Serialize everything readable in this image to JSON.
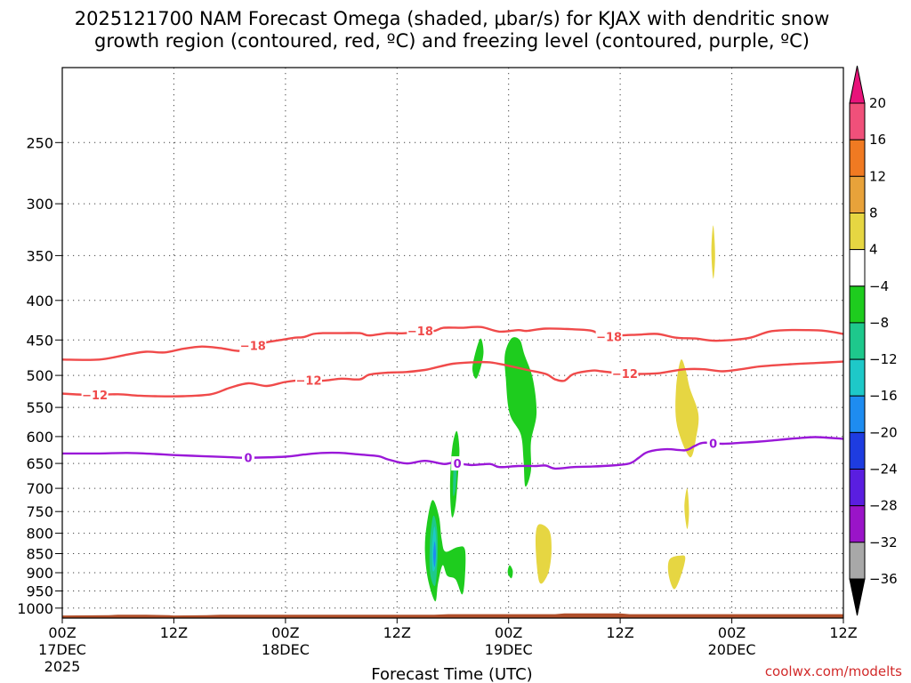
{
  "chart_data": {
    "type": "contour",
    "title_line1": "2025121700 NAM Forecast Omega (shaded, μbar/s) for KJAX with dendritic snow",
    "title_line2": "growth region (contoured, red, ºC) and freezing level (contoured, purple, ºC)",
    "xlabel": "Forecast Time (UTC)",
    "ylabel": "",
    "credit": "coolwx.com/modelts",
    "x_range_hours": [
      0,
      84
    ],
    "y_range_hPa": [
      1030,
      200
    ],
    "x_ticks": [
      {
        "hour": 0,
        "label": "00Z",
        "sub": "17DEC",
        "sub2": "2025"
      },
      {
        "hour": 12,
        "label": "12Z",
        "sub": "",
        "sub2": ""
      },
      {
        "hour": 24,
        "label": "00Z",
        "sub": "18DEC",
        "sub2": ""
      },
      {
        "hour": 36,
        "label": "12Z",
        "sub": "",
        "sub2": ""
      },
      {
        "hour": 48,
        "label": "00Z",
        "sub": "19DEC",
        "sub2": ""
      },
      {
        "hour": 60,
        "label": "12Z",
        "sub": "",
        "sub2": ""
      },
      {
        "hour": 72,
        "label": "00Z",
        "sub": "20DEC",
        "sub2": ""
      },
      {
        "hour": 84,
        "label": "12Z",
        "sub": "",
        "sub2": ""
      }
    ],
    "y_ticks": [
      {
        "p": 250,
        "label": "250"
      },
      {
        "p": 300,
        "label": "300"
      },
      {
        "p": 350,
        "label": "350"
      },
      {
        "p": 400,
        "label": "400"
      },
      {
        "p": 450,
        "label": "450"
      },
      {
        "p": 500,
        "label": "500"
      },
      {
        "p": 550,
        "label": "550"
      },
      {
        "p": 600,
        "label": "600"
      },
      {
        "p": 650,
        "label": "650"
      },
      {
        "p": 700,
        "label": "700"
      },
      {
        "p": 750,
        "label": "750"
      },
      {
        "p": 800,
        "label": "800"
      },
      {
        "p": 850,
        "label": "850"
      },
      {
        "p": 900,
        "label": "900"
      },
      {
        "p": 950,
        "label": "950"
      },
      {
        "p": 1000,
        "label": "1000"
      }
    ],
    "colorbar": {
      "levels": [
        {
          "label": "20",
          "color": "#ee4a5c"
        },
        {
          "label": "16",
          "color": "#f07a22"
        },
        {
          "label": "12",
          "color": "#e8a23a"
        },
        {
          "label": "8",
          "color": "#e6d642"
        },
        {
          "label": "4",
          "color": "#ffffff"
        },
        {
          "label": "−4",
          "color": "#1ecc1e"
        },
        {
          "label": "−8",
          "color": "#1ec88c"
        },
        {
          "label": "−12",
          "color": "#1ec8c8"
        },
        {
          "label": "−16",
          "color": "#1e8cf0"
        },
        {
          "label": "−20",
          "color": "#1e3ce0"
        },
        {
          "label": "−24",
          "color": "#5a1ee0"
        },
        {
          "label": "−28",
          "color": "#9a14c8"
        },
        {
          "label": "−32",
          "color": "#a8a8a8"
        },
        {
          "label": "−36",
          "color": ""
        }
      ],
      "top_arrow_color": "#e8137a",
      "bottom_arrow_color": "#000000",
      "first_band_color": "#f0507a"
    },
    "contours": [
      {
        "name": "minus-18-isotherm",
        "label": "−18",
        "color": "#f04a4a",
        "label_hours": [
          20.5,
          38.5,
          58.8
        ],
        "points": [
          [
            0,
            477
          ],
          [
            4,
            477
          ],
          [
            7,
            470
          ],
          [
            9,
            466
          ],
          [
            11,
            467
          ],
          [
            13,
            462
          ],
          [
            15,
            459
          ],
          [
            17,
            461
          ],
          [
            19,
            465
          ],
          [
            20,
            459
          ],
          [
            22,
            453
          ],
          [
            24,
            449
          ],
          [
            25,
            447
          ],
          [
            26,
            446
          ],
          [
            27,
            442
          ],
          [
            28,
            441
          ],
          [
            30,
            441
          ],
          [
            32,
            441
          ],
          [
            33,
            444
          ],
          [
            35,
            441
          ],
          [
            37,
            441
          ],
          [
            39,
            437
          ],
          [
            40,
            438
          ],
          [
            41,
            434
          ],
          [
            43,
            434
          ],
          [
            45,
            433
          ],
          [
            47,
            439
          ],
          [
            49,
            437
          ],
          [
            50,
            438
          ],
          [
            52,
            435
          ],
          [
            55,
            436
          ],
          [
            57,
            438
          ],
          [
            58,
            445
          ],
          [
            59,
            446
          ],
          [
            60,
            444
          ],
          [
            62,
            443
          ],
          [
            64,
            442
          ],
          [
            66,
            447
          ],
          [
            68,
            448
          ],
          [
            70,
            451
          ],
          [
            72,
            450
          ],
          [
            74,
            447
          ],
          [
            76,
            439
          ],
          [
            78,
            437
          ],
          [
            80,
            437
          ],
          [
            82,
            438
          ],
          [
            84,
            442
          ]
        ]
      },
      {
        "name": "minus-12-isotherm",
        "label": "−12",
        "color": "#f04a4a",
        "label_hours": [
          3.5,
          26.5,
          60.5
        ],
        "points": [
          [
            0,
            528
          ],
          [
            3,
            530
          ],
          [
            6,
            529
          ],
          [
            8,
            531
          ],
          [
            10,
            532
          ],
          [
            13,
            532
          ],
          [
            16,
            529
          ],
          [
            18,
            519
          ],
          [
            20,
            512
          ],
          [
            22,
            516
          ],
          [
            24,
            510
          ],
          [
            26,
            507
          ],
          [
            28,
            508
          ],
          [
            30,
            505
          ],
          [
            32,
            506
          ],
          [
            33,
            499
          ],
          [
            35,
            496
          ],
          [
            37,
            495
          ],
          [
            39,
            492
          ],
          [
            40,
            489
          ],
          [
            42,
            483
          ],
          [
            44,
            481
          ],
          [
            46,
            481
          ],
          [
            48,
            486
          ],
          [
            50,
            492
          ],
          [
            52,
            498
          ],
          [
            53,
            506
          ],
          [
            54,
            508
          ],
          [
            55,
            498
          ],
          [
            57,
            493
          ],
          [
            58,
            494
          ],
          [
            60,
            497
          ],
          [
            62,
            498
          ],
          [
            64,
            497
          ],
          [
            65,
            495
          ],
          [
            67,
            491
          ],
          [
            69,
            491
          ],
          [
            71,
            494
          ],
          [
            73,
            491
          ],
          [
            75,
            487
          ],
          [
            78,
            484
          ],
          [
            81,
            482
          ],
          [
            84,
            480
          ]
        ]
      },
      {
        "name": "freezing-level-0c",
        "label": "0",
        "color": "#9a18d8",
        "label_hours": [
          20,
          42.5,
          70
        ],
        "points": [
          [
            0,
            631
          ],
          [
            4,
            631
          ],
          [
            7,
            630
          ],
          [
            10,
            632
          ],
          [
            12,
            634
          ],
          [
            15,
            636
          ],
          [
            18,
            638
          ],
          [
            20,
            639
          ],
          [
            24,
            637
          ],
          [
            26,
            633
          ],
          [
            28,
            630
          ],
          [
            30,
            630
          ],
          [
            32,
            633
          ],
          [
            34,
            636
          ],
          [
            35,
            642
          ],
          [
            37,
            650
          ],
          [
            39,
            645
          ],
          [
            41,
            651
          ],
          [
            42,
            649
          ],
          [
            44,
            653
          ],
          [
            46,
            651
          ],
          [
            47,
            657
          ],
          [
            49,
            655
          ],
          [
            51,
            655
          ],
          [
            52,
            654
          ],
          [
            53,
            660
          ],
          [
            55,
            657
          ],
          [
            57,
            656
          ],
          [
            59,
            654
          ],
          [
            61,
            650
          ],
          [
            62,
            639
          ],
          [
            63,
            628
          ],
          [
            65,
            623
          ],
          [
            67,
            625
          ],
          [
            68,
            617
          ],
          [
            69,
            611
          ],
          [
            71,
            613
          ],
          [
            73,
            611
          ],
          [
            75,
            609
          ],
          [
            77,
            606
          ],
          [
            79,
            603
          ],
          [
            81,
            601
          ],
          [
            84,
            604
          ]
        ]
      }
    ],
    "omega_regions": [
      {
        "name": "green-blob-hr45",
        "color": "#1ecc1e",
        "points": [
          [
            45.0,
            448
          ],
          [
            44.5,
            464
          ],
          [
            44.1,
            490
          ],
          [
            44.5,
            505
          ],
          [
            45.0,
            488
          ],
          [
            45.3,
            466
          ]
        ]
      },
      {
        "name": "green-blob-hr48",
        "color": "#1ecc1e",
        "points": [
          [
            48.3,
            448
          ],
          [
            47.6,
            470
          ],
          [
            47.7,
            505
          ],
          [
            48.1,
            560
          ],
          [
            49.3,
            596
          ],
          [
            49.6,
            642
          ],
          [
            49.8,
            696
          ],
          [
            50.4,
            664
          ],
          [
            50.4,
            610
          ],
          [
            51.0,
            560
          ],
          [
            50.6,
            505
          ],
          [
            49.7,
            470
          ],
          [
            49.2,
            450
          ]
        ]
      },
      {
        "name": "green-blob-hr42-mid",
        "color": "#1ecc1e",
        "points": [
          [
            42.4,
            590
          ],
          [
            41.9,
            625
          ],
          [
            41.7,
            700
          ],
          [
            41.9,
            762
          ],
          [
            42.3,
            735
          ],
          [
            42.6,
            660
          ],
          [
            42.7,
            620
          ]
        ]
      },
      {
        "name": "teal-blob-hr42-mid",
        "color": "#1ec88c",
        "points": [
          [
            42.2,
            640
          ],
          [
            42.05,
            670
          ],
          [
            42.05,
            715
          ],
          [
            42.3,
            700
          ],
          [
            42.4,
            660
          ]
        ]
      },
      {
        "name": "green-blob-hr40-low",
        "color": "#1ecc1e",
        "points": [
          [
            39.8,
            725
          ],
          [
            39.2,
            780
          ],
          [
            39.0,
            840
          ],
          [
            39.3,
            915
          ],
          [
            40.1,
            980
          ],
          [
            40.4,
            930
          ],
          [
            40.9,
            880
          ],
          [
            41.4,
            908
          ],
          [
            42.3,
            918
          ],
          [
            43.0,
            960
          ],
          [
            43.3,
            910
          ],
          [
            43.3,
            840
          ],
          [
            42.5,
            834
          ],
          [
            41.2,
            845
          ],
          [
            40.8,
            815
          ],
          [
            40.5,
            760
          ]
        ]
      },
      {
        "name": "teal-blob-hr40-low",
        "color": "#1ec88c",
        "points": [
          [
            39.9,
            760
          ],
          [
            39.55,
            820
          ],
          [
            39.55,
            900
          ],
          [
            40.1,
            935
          ],
          [
            40.35,
            860
          ],
          [
            40.3,
            790
          ]
        ]
      },
      {
        "name": "cyan-blob-hr40-low",
        "color": "#1ec8c8",
        "points": [
          [
            40.0,
            785
          ],
          [
            39.75,
            840
          ],
          [
            39.85,
            895
          ],
          [
            40.2,
            875
          ],
          [
            40.2,
            815
          ]
        ]
      },
      {
        "name": "blue-blob-hr40-low",
        "color": "#1e8cf0",
        "points": [
          [
            40.05,
            820
          ],
          [
            39.9,
            855
          ],
          [
            40.05,
            885
          ],
          [
            40.18,
            850
          ]
        ]
      },
      {
        "name": "green-blob-hr48-low",
        "color": "#1ecc1e",
        "points": [
          [
            48.1,
            880
          ],
          [
            47.9,
            900
          ],
          [
            48.3,
            915
          ],
          [
            48.45,
            895
          ]
        ]
      },
      {
        "name": "yellow-blob-hr70-upper",
        "color": "#e6d642",
        "points": [
          [
            70.0,
            320
          ],
          [
            69.8,
            345
          ],
          [
            70.0,
            375
          ],
          [
            70.2,
            350
          ]
        ]
      },
      {
        "name": "yellow-blob-hr67-mid",
        "color": "#e6d642",
        "points": [
          [
            66.5,
            478
          ],
          [
            66.0,
            520
          ],
          [
            66.1,
            580
          ],
          [
            67.5,
            638
          ],
          [
            68.2,
            598
          ],
          [
            68.4,
            560
          ],
          [
            67.5,
            520
          ],
          [
            67.0,
            490
          ]
        ]
      },
      {
        "name": "yellow-blob-hr67-low2",
        "color": "#e6d642",
        "points": [
          [
            67.2,
            700
          ],
          [
            66.9,
            740
          ],
          [
            67.2,
            790
          ],
          [
            67.4,
            750
          ]
        ]
      },
      {
        "name": "yellow-blob-hr51-low",
        "color": "#e6d642",
        "points": [
          [
            51.2,
            780
          ],
          [
            50.9,
            825
          ],
          [
            51.3,
            925
          ],
          [
            52.2,
            905
          ],
          [
            52.6,
            850
          ],
          [
            52.4,
            795
          ]
        ]
      },
      {
        "name": "yellow-blob-hr66-low",
        "color": "#e6d642",
        "points": [
          [
            66.5,
            855
          ],
          [
            65.3,
            865
          ],
          [
            65.2,
            905
          ],
          [
            65.8,
            945
          ],
          [
            66.5,
            910
          ],
          [
            67.0,
            862
          ]
        ]
      }
    ],
    "ground": {
      "color": "#b04f2a",
      "points": [
        [
          0,
          1022
        ],
        [
          5,
          1021
        ],
        [
          6,
          1020
        ],
        [
          9,
          1020
        ],
        [
          11.5,
          1021
        ],
        [
          12,
          1022
        ],
        [
          15.5,
          1021
        ],
        [
          17,
          1020
        ],
        [
          40,
          1020
        ],
        [
          41.5,
          1018
        ],
        [
          53,
          1018
        ],
        [
          54,
          1016
        ],
        [
          60,
          1016
        ],
        [
          61,
          1018
        ],
        [
          84,
          1018
        ]
      ]
    }
  }
}
